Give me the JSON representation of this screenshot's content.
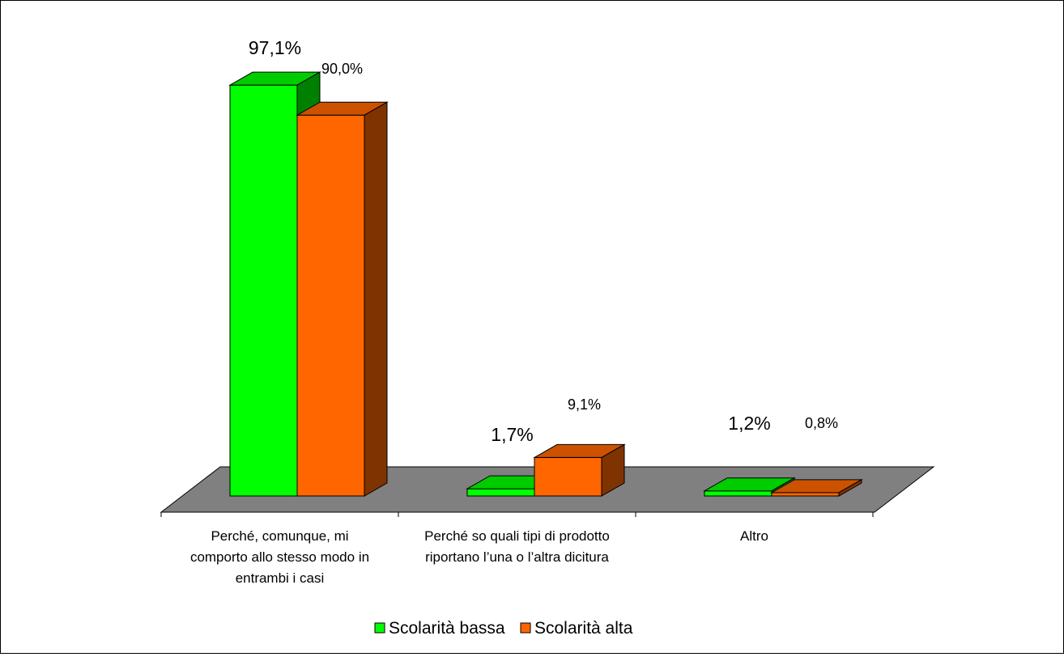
{
  "chart_data": {
    "type": "bar",
    "title": "",
    "xlabel": "",
    "ylabel": "",
    "ylim": [
      0,
      100
    ],
    "grid": false,
    "legend_position": "bottom",
    "categories": [
      [
        "Perché, comunque,  mi",
        "comporto allo stesso modo in",
        "entrambi i casi"
      ],
      [
        "Perché so quali tipi di prodotto",
        "riportano l’una o l’altra dicitura"
      ],
      [
        "Altro"
      ]
    ],
    "series": [
      {
        "name": "Scolarità bassa",
        "values": [
          97.1,
          1.7,
          1.2
        ],
        "labels": [
          "97,1%",
          "1,7%",
          "1,2%"
        ],
        "colors": {
          "front": "#00FF00",
          "top": "#00CC00",
          "side": "#008000"
        }
      },
      {
        "name": "Scolarità alta",
        "values": [
          90.0,
          9.1,
          0.8
        ],
        "labels": [
          "90,0%",
          "9,1%",
          "0,8%"
        ],
        "colors": {
          "front": "#FF6600",
          "top": "#CC5200",
          "side": "#7F3300"
        }
      }
    ],
    "floor_color": "#808080"
  }
}
